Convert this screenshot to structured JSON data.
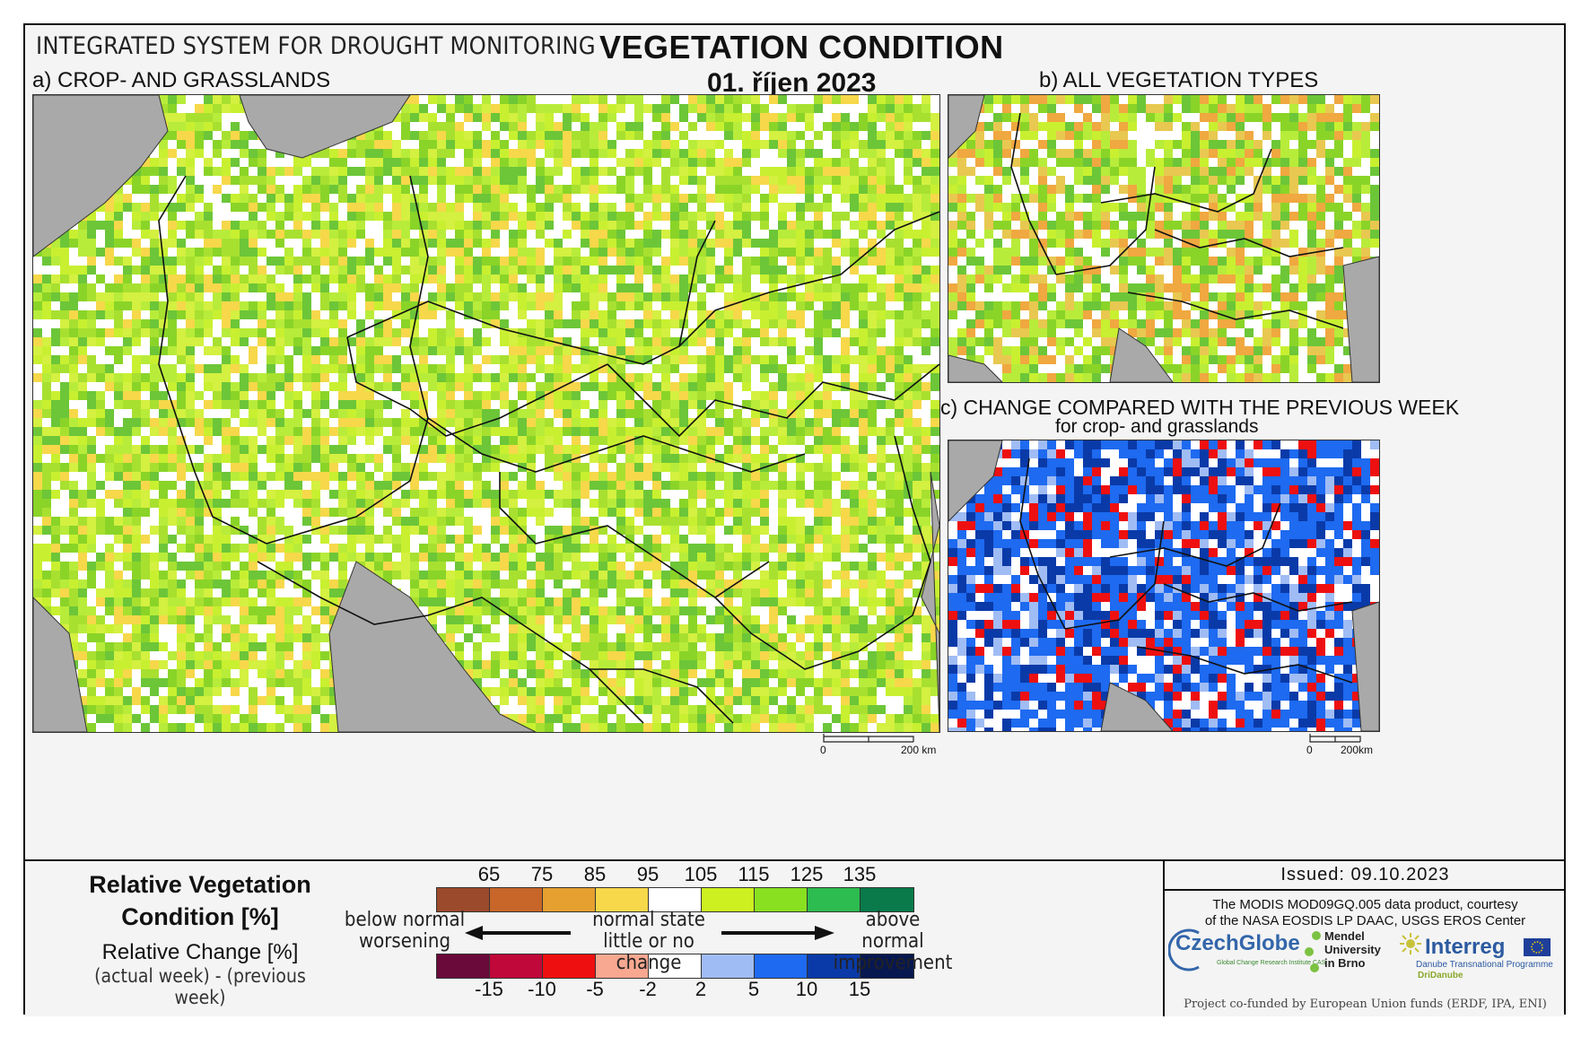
{
  "header": {
    "system_title": "INTEGRATED SYSTEM FOR DROUGHT MONITORING",
    "main_title": "VEGETATION CONDITION",
    "date": "01. říjen 2023"
  },
  "panels": {
    "a": {
      "label": "a) CROP- AND GRASSLANDS",
      "scale_zero": "0",
      "scale_max": "200 km"
    },
    "b": {
      "label": "b) ALL VEGETATION TYPES"
    },
    "c": {
      "label": "c) CHANGE COMPARED WITH THE PREVIOUS WEEK",
      "sublabel": "for crop- and grasslands",
      "scale_zero": "0",
      "scale_max": "200km"
    }
  },
  "legend": {
    "rvc_title_line1": "Relative Vegetation",
    "rvc_title_line2": "Condition [%]",
    "rc_title": "Relative Change [%]",
    "rc_subtitle": "(actual week) - (previous week)",
    "rvc_colors": [
      "#9c4a2c",
      "#c8662a",
      "#e6a030",
      "#f6d84a",
      "#ffffff",
      "#ccf020",
      "#88e020",
      "#2cbc50",
      "#0a7a4a"
    ],
    "rvc_ticks": [
      "65",
      "75",
      "85",
      "95",
      "105",
      "115",
      "125",
      "135"
    ],
    "rc_colors": [
      "#6a0a3a",
      "#c0083a",
      "#ee1010",
      "#f8a890",
      "#ffffff",
      "#a0bcf4",
      "#1e6af0",
      "#0a3aa8",
      "#071850"
    ],
    "rc_ticks": [
      "-15",
      "-10",
      "-5",
      "-2",
      "2",
      "5",
      "10",
      "15"
    ],
    "left_line1": "below normal",
    "left_line2": "worsening",
    "mid_line1": "normal state",
    "mid_line2": "little or no change",
    "right_line1": "above normal",
    "right_line2": "improvement"
  },
  "footer": {
    "issued": "Issued: 09.10.2023",
    "credit_line1": "The MODIS MOD09GQ.005 data product, courtesy",
    "credit_line2": "of the NASA EOSDIS LP DAAC, USGS EROS Center",
    "logo_czechglobe": "CzechGlobe",
    "logo_czechglobe_sub": "Global Change Research Institute CAS",
    "logo_mendel_1": "Mendel",
    "logo_mendel_2": "University",
    "logo_mendel_3": "in Brno",
    "logo_interreg": "Interreg",
    "logo_interreg_sub": "Danube Transnational Programme",
    "logo_interreg_sub2": "DriDanube",
    "cofund": "Project co-funded by European Union funds (ERDF, IPA, ENI)"
  }
}
